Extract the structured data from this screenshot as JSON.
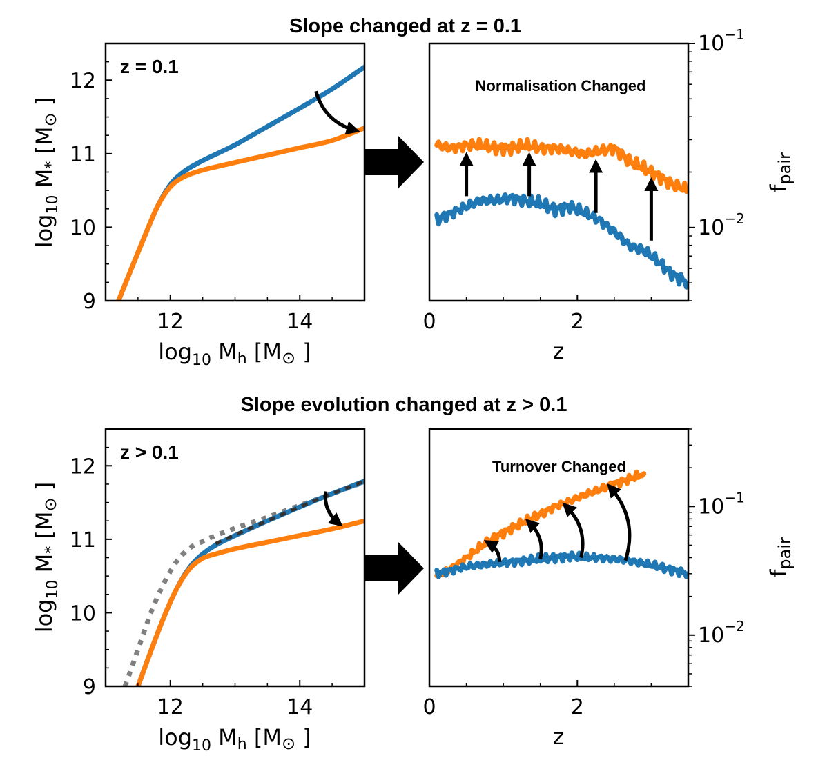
{
  "figure": {
    "row1_title": "Slope changed at z = 0.1",
    "row2_title": "Slope evolution changed at z > 0.1"
  },
  "colors": {
    "blue": "#1f77b4",
    "orange": "#ff7f0e",
    "gray": "#808080",
    "dark": "#333333"
  },
  "axis_text": {
    "log10": "log",
    "sub10": "10",
    "mstar_rest": " M",
    "mstar_sub": "*",
    "mh_rest": " M",
    "mh_sub": "h",
    "msun_open": " [M",
    "msun_sym": "⊙",
    "msun_close": " ]",
    "z": "z",
    "fpair_main": "f",
    "fpair_sub": "pair",
    "exp_base": "10",
    "exp_m1": "−1",
    "exp_m2": "−2"
  },
  "chart_data": [
    {
      "id": "row1-left",
      "type": "line",
      "annotation": "z = 0.1",
      "xlabel": "log10 Mh [M⊙]",
      "ylabel": "log10 M* [M⊙]",
      "xlim": [
        11,
        15
      ],
      "ylim": [
        9,
        12.5
      ],
      "x_ticks": [
        12,
        14
      ],
      "x_tick_labels": [
        "12",
        "14"
      ],
      "y_ticks": [
        9,
        10,
        11,
        12
      ],
      "y_tick_labels": [
        "9",
        "10",
        "11",
        "12"
      ],
      "series": [
        {
          "color": "#1f77b4",
          "style": "solid",
          "x": [
            11.2,
            11.4,
            11.6,
            11.8,
            12.0,
            12.2,
            12.4,
            12.6,
            13.0,
            13.5,
            14.0,
            14.5,
            15.0
          ],
          "y": [
            9.0,
            9.44,
            9.87,
            10.28,
            10.58,
            10.75,
            10.86,
            10.95,
            11.12,
            11.37,
            11.62,
            11.88,
            12.18
          ]
        },
        {
          "color": "#ff7f0e",
          "style": "solid",
          "x": [
            11.2,
            11.4,
            11.6,
            11.8,
            12.0,
            12.2,
            12.4,
            12.6,
            13.0,
            13.5,
            14.0,
            14.5,
            15.0
          ],
          "y": [
            9.0,
            9.44,
            9.87,
            10.28,
            10.55,
            10.68,
            10.75,
            10.8,
            10.88,
            10.98,
            11.08,
            11.18,
            11.35
          ]
        }
      ],
      "arrows": [
        {
          "from": [
            14.25,
            11.85
          ],
          "to": [
            14.85,
            11.32
          ],
          "curved": true
        }
      ]
    },
    {
      "id": "row1-right",
      "type": "line",
      "annotation": "Normalisation Changed",
      "xlabel": "z",
      "ylabel": "fpair",
      "xlim": [
        0,
        3.5
      ],
      "y_scale": "log",
      "ylim": [
        0.004,
        0.1
      ],
      "x_ticks": [
        0,
        2
      ],
      "x_tick_labels": [
        "0",
        "2"
      ],
      "y_ticks": [
        0.01,
        0.1
      ],
      "y_tick_labels": [
        "10^-2",
        "10^-1"
      ],
      "series": [
        {
          "color": "#ff7f0e",
          "x": [
            0.1,
            0.3,
            0.5,
            0.7,
            0.9,
            1.1,
            1.3,
            1.5,
            1.7,
            1.9,
            2.1,
            2.3,
            2.5,
            2.7,
            2.9,
            3.1,
            3.3,
            3.5
          ],
          "y": [
            0.028,
            0.027,
            0.028,
            0.028,
            0.027,
            0.027,
            0.028,
            0.027,
            0.027,
            0.026,
            0.025,
            0.026,
            0.027,
            0.023,
            0.021,
            0.019,
            0.017,
            0.016
          ]
        },
        {
          "color": "#1f77b4",
          "x": [
            0.1,
            0.3,
            0.5,
            0.7,
            0.9,
            1.1,
            1.3,
            1.5,
            1.7,
            1.9,
            2.1,
            2.3,
            2.5,
            2.7,
            2.9,
            3.1,
            3.3,
            3.5
          ],
          "y": [
            0.011,
            0.012,
            0.013,
            0.014,
            0.014,
            0.0145,
            0.014,
            0.0135,
            0.0125,
            0.013,
            0.012,
            0.011,
            0.0095,
            0.008,
            0.0075,
            0.0065,
            0.0055,
            0.005
          ]
        }
      ],
      "arrows": [
        {
          "from": [
            0.5,
            0.0148
          ],
          "to": [
            0.5,
            0.024
          ]
        },
        {
          "from": [
            1.35,
            0.0148
          ],
          "to": [
            1.35,
            0.024
          ]
        },
        {
          "from": [
            2.25,
            0.012
          ],
          "to": [
            2.25,
            0.022
          ]
        },
        {
          "from": [
            3.0,
            0.0085
          ],
          "to": [
            3.0,
            0.0175
          ]
        }
      ]
    },
    {
      "id": "row2-left",
      "type": "line",
      "annotation": "z > 0.1",
      "xlabel": "log10 Mh [M⊙]",
      "ylabel": "log10 M* [M⊙]",
      "xlim": [
        11,
        15
      ],
      "ylim": [
        9,
        12.5
      ],
      "x_ticks": [
        12,
        14
      ],
      "x_tick_labels": [
        "12",
        "14"
      ],
      "y_ticks": [
        9,
        10,
        11,
        12
      ],
      "y_tick_labels": [
        "9",
        "10",
        "11",
        "12"
      ],
      "series": [
        {
          "color": "#808080",
          "style": "dotted",
          "x": [
            11.3,
            11.5,
            11.7,
            11.9,
            12.1,
            12.3,
            12.5,
            12.7,
            13.0,
            13.5,
            14.0,
            14.5,
            15.0
          ],
          "y": [
            9.0,
            9.5,
            10.0,
            10.4,
            10.7,
            10.88,
            10.97,
            11.05,
            11.15,
            11.3,
            11.46,
            11.62,
            11.78
          ]
        },
        {
          "color": "#1f77b4",
          "style": "solid",
          "x": [
            11.5,
            11.7,
            11.9,
            12.1,
            12.3,
            12.5,
            12.7,
            13.0,
            13.5,
            14.0,
            14.5,
            15.0
          ],
          "y": [
            9.0,
            9.48,
            9.94,
            10.33,
            10.62,
            10.8,
            10.92,
            11.05,
            11.25,
            11.44,
            11.62,
            11.79
          ]
        },
        {
          "color": "#333333",
          "style": "dashed",
          "x": [
            12.7,
            13.0,
            13.5,
            14.0,
            14.5,
            15.0
          ],
          "y": [
            10.94,
            11.06,
            11.25,
            11.44,
            11.62,
            11.79
          ]
        },
        {
          "color": "#ff7f0e",
          "style": "solid",
          "x": [
            11.5,
            11.7,
            11.9,
            12.1,
            12.3,
            12.5,
            12.7,
            13.0,
            13.5,
            14.0,
            14.5,
            15.0
          ],
          "y": [
            9.0,
            9.48,
            9.94,
            10.33,
            10.6,
            10.74,
            10.8,
            10.87,
            10.96,
            11.05,
            11.14,
            11.25
          ]
        }
      ],
      "arrows": [
        {
          "from": [
            14.4,
            11.65
          ],
          "to": [
            14.6,
            11.22
          ],
          "curved": true
        }
      ]
    },
    {
      "id": "row2-right",
      "type": "line",
      "annotation": "Turnover Changed",
      "xlabel": "z",
      "ylabel": "fpair",
      "xlim": [
        0,
        3.5
      ],
      "y_scale": "log",
      "ylim": [
        0.004,
        0.4
      ],
      "x_ticks": [
        0,
        2
      ],
      "x_tick_labels": [
        "0",
        "2"
      ],
      "y_ticks": [
        0.01,
        0.1
      ],
      "y_tick_labels": [
        "10^-2",
        "10^-1"
      ],
      "series": [
        {
          "color": "#ff7f0e",
          "x": [
            0.1,
            0.3,
            0.5,
            0.7,
            0.9,
            1.1,
            1.3,
            1.5,
            1.7,
            1.9,
            2.1,
            2.3,
            2.5,
            2.7,
            2.9
          ],
          "y": [
            0.029,
            0.033,
            0.04,
            0.049,
            0.058,
            0.067,
            0.077,
            0.087,
            0.1,
            0.11,
            0.123,
            0.135,
            0.15,
            0.163,
            0.18
          ]
        },
        {
          "color": "#1f77b4",
          "x": [
            0.1,
            0.3,
            0.5,
            0.7,
            0.9,
            1.1,
            1.3,
            1.5,
            1.7,
            1.9,
            2.1,
            2.3,
            2.5,
            2.7,
            2.9,
            3.1,
            3.3,
            3.5
          ],
          "y": [
            0.03,
            0.032,
            0.034,
            0.035,
            0.036,
            0.037,
            0.038,
            0.039,
            0.04,
            0.041,
            0.04,
            0.04,
            0.039,
            0.038,
            0.036,
            0.034,
            0.032,
            0.03
          ]
        }
      ],
      "arrows": [
        {
          "from": [
            0.95,
            0.037
          ],
          "to": [
            0.8,
            0.052
          ],
          "curved": true
        },
        {
          "from": [
            1.5,
            0.039
          ],
          "to": [
            1.35,
            0.075
          ],
          "curved": true
        },
        {
          "from": [
            2.05,
            0.04
          ],
          "to": [
            1.85,
            0.1
          ],
          "curved": true
        },
        {
          "from": [
            2.65,
            0.038
          ],
          "to": [
            2.45,
            0.14
          ],
          "curved": true
        }
      ]
    }
  ]
}
